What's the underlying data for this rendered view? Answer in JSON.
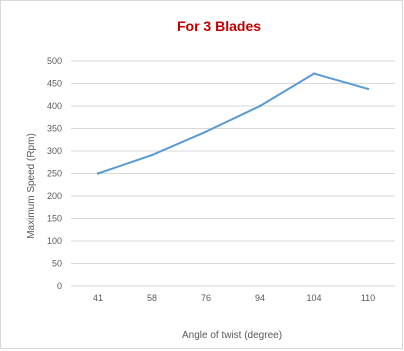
{
  "chart_data": {
    "type": "line",
    "title": "For 3 Blades",
    "title_color": "#c00000",
    "xlabel": "Angle of twist (degree)",
    "ylabel": "Maximum Speed (Rpm)",
    "categories": [
      "41",
      "58",
      "76",
      "94",
      "104",
      "110"
    ],
    "series": [
      {
        "values": [
          250,
          291,
          343,
          400,
          472,
          438
        ],
        "color": "#5b9bd5"
      }
    ],
    "ylim": [
      0,
      500
    ],
    "yticks": [
      0,
      50,
      100,
      150,
      200,
      250,
      300,
      350,
      400,
      450,
      500
    ],
    "grid": true,
    "legend": "none"
  }
}
